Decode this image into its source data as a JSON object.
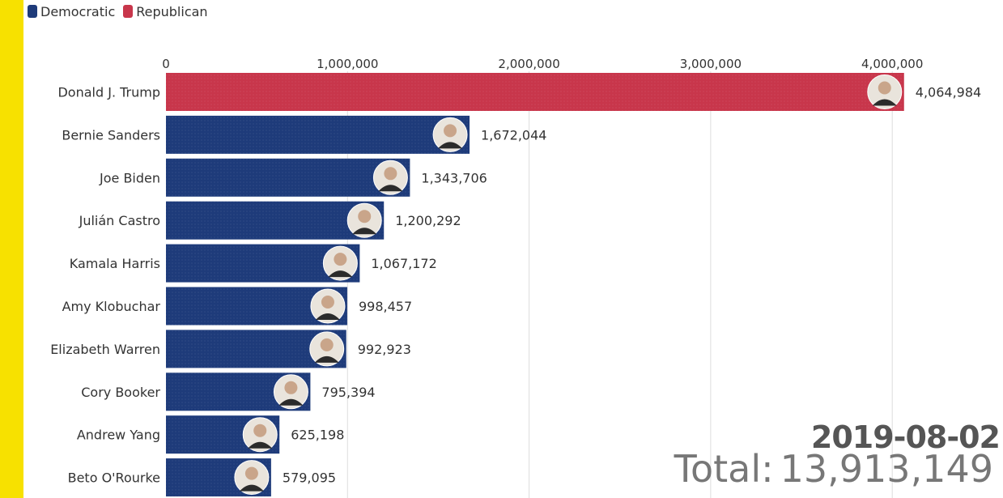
{
  "legend": [
    {
      "label": "Democratic",
      "color": "#1e3b7a"
    },
    {
      "label": "Republican",
      "color": "#c8364b"
    }
  ],
  "date": "2019-08-02",
  "total": {
    "label": "Total:",
    "value": "13,913,149"
  },
  "chart_data": {
    "type": "bar",
    "orientation": "horizontal",
    "title": "",
    "xlabel": "",
    "ylabel": "",
    "xlim": [
      0,
      4450000
    ],
    "x_ticks": [
      0,
      1000000,
      2000000,
      3000000,
      4000000
    ],
    "x_tick_labels": [
      "0",
      "1,000,000",
      "2,000,000",
      "3,000,000",
      "4,000,000"
    ],
    "grid": true,
    "legend_position": "top-left",
    "categories": [
      "Donald J. Trump",
      "Bernie Sanders",
      "Joe Biden",
      "Julián Castro",
      "Kamala Harris",
      "Amy Klobuchar",
      "Elizabeth Warren",
      "Cory Booker",
      "Andrew Yang",
      "Beto O'Rourke"
    ],
    "values": [
      4064984,
      1672044,
      1343706,
      1200292,
      1067172,
      998457,
      992923,
      795394,
      625198,
      579095
    ],
    "value_labels": [
      "4,064,984",
      "1,672,044",
      "1,343,706",
      "1,200,292",
      "1,067,172",
      "998,457",
      "992,923",
      "795,394",
      "625,198",
      "579,095"
    ],
    "parties": [
      "Republican",
      "Democratic",
      "Democratic",
      "Democratic",
      "Democratic",
      "Democratic",
      "Democratic",
      "Democratic",
      "Democratic",
      "Democratic"
    ],
    "colors": {
      "Democratic": "#1e3b7a",
      "Republican": "#c8364b"
    }
  }
}
